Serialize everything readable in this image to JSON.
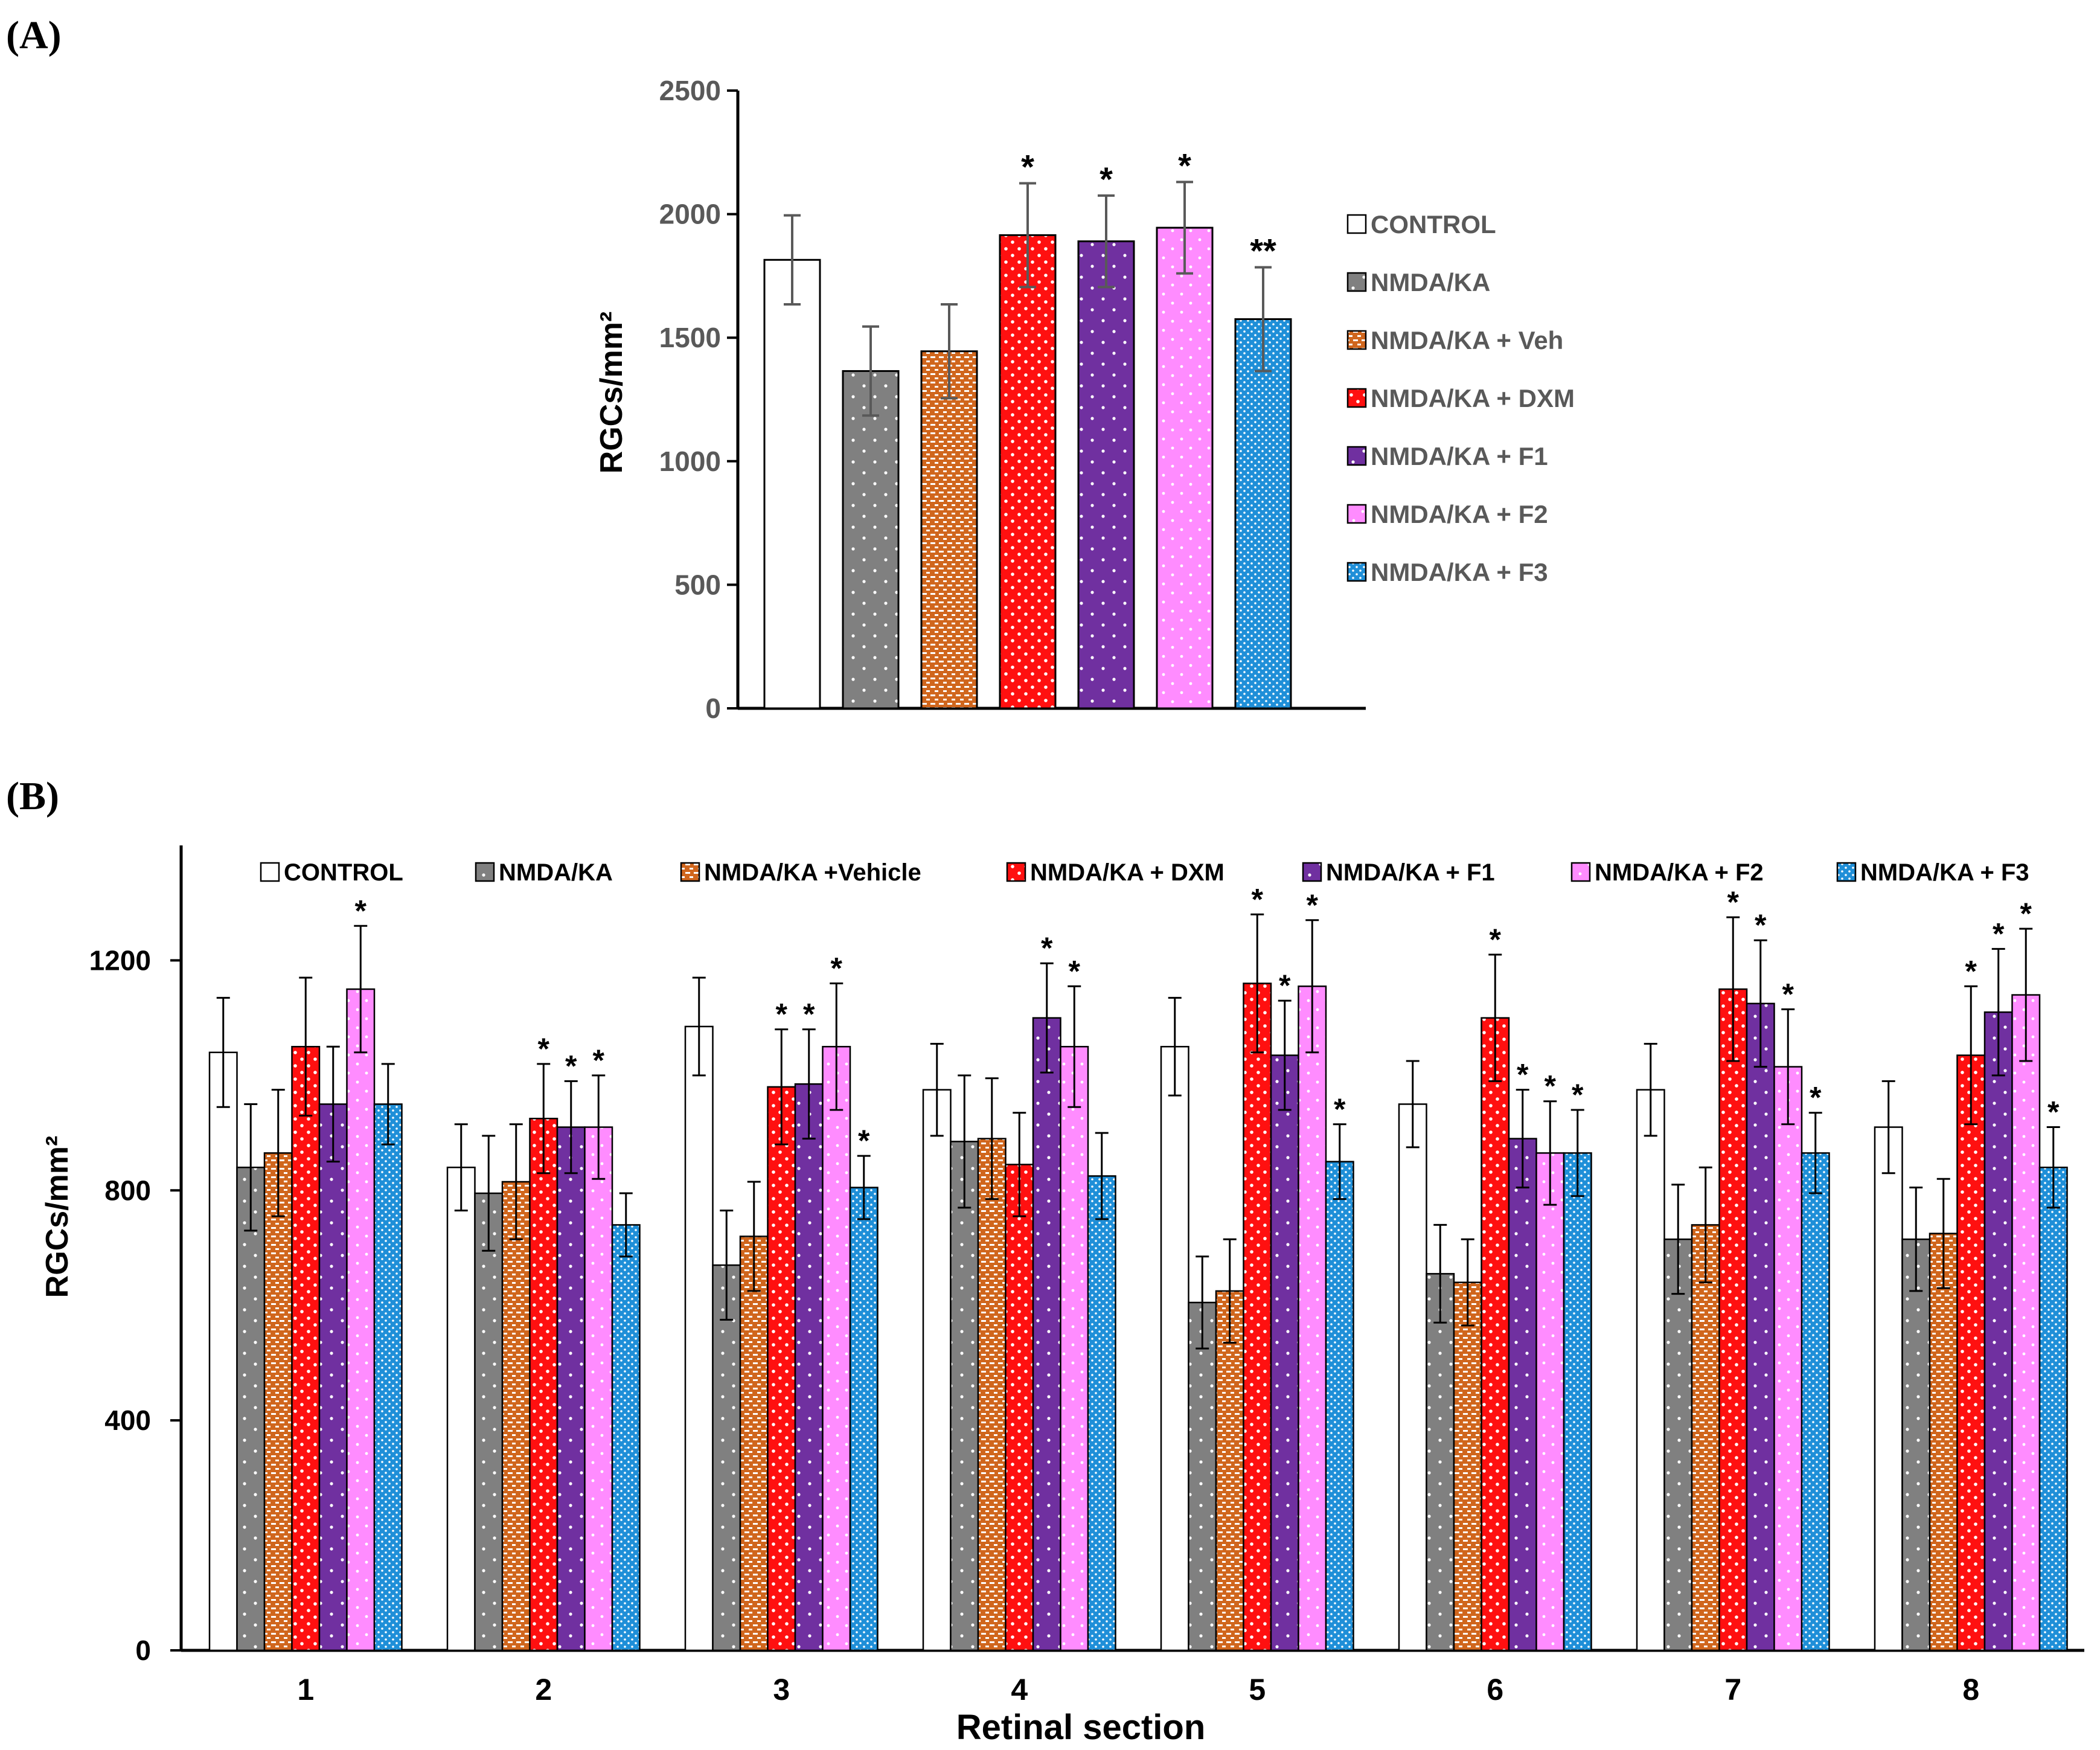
{
  "figure": {
    "panel_labels": [
      "(A)",
      "(B)"
    ]
  },
  "colors": {
    "control": "#ffffff",
    "nmda_ka": "#808080",
    "vehicle": "#d0661d",
    "dxm": "#ff1010",
    "f1": "#7030a0",
    "f2": "#ff8cff",
    "f3": "#1f8fd8",
    "axis": "#000000",
    "tick_text_a": "#595959",
    "error_bar_a": "#595959",
    "error_bar_b": "#000000"
  },
  "chart_data": [
    {
      "type": "bar",
      "panel": "(A)",
      "title": "",
      "xlabel": "",
      "ylabel": "RGCs/mm²",
      "ylim": [
        0,
        2500
      ],
      "yticks": [
        0,
        500,
        1000,
        1500,
        2000,
        2500
      ],
      "grid": false,
      "legend_position": "right",
      "categories": [
        "CONTROL",
        "NMDA/KA",
        "NMDA/KA + Veh",
        "NMDA/KA + DXM",
        "NMDA/KA + F1",
        "NMDA/KA + F2",
        "NMDA/KA + F3"
      ],
      "legend": [
        "CONTROL",
        "NMDA/KA",
        "NMDA/KA + Veh",
        "NMDA/KA + DXM",
        "NMDA/KA + F1",
        "NMDA/KA + F2",
        "NMDA/KA + F3"
      ],
      "series_keys": [
        "control",
        "nmda_ka",
        "vehicle",
        "dxm",
        "f1",
        "f2",
        "f3"
      ],
      "values": [
        1815,
        1365,
        1445,
        1915,
        1890,
        1945,
        1575
      ],
      "errors": [
        180,
        180,
        190,
        210,
        185,
        185,
        210
      ],
      "significance": [
        "",
        "",
        "",
        "*",
        "*",
        "*",
        "**"
      ]
    },
    {
      "type": "bar",
      "panel": "(B)",
      "title": "",
      "xlabel": "Retinal section",
      "ylabel": "RGCs/mm²",
      "ylim": [
        0,
        1400
      ],
      "yticks": [
        0,
        400,
        800,
        1200
      ],
      "grid": false,
      "legend_position": "top",
      "categories": [
        "1",
        "2",
        "3",
        "4",
        "5",
        "6",
        "7",
        "8"
      ],
      "legend": [
        "CONTROL",
        "NMDA/KA",
        "NMDA/KA +Vehicle",
        "NMDA/KA + DXM",
        "NMDA/KA + F1",
        "NMDA/KA + F2",
        "NMDA/KA + F3"
      ],
      "series": [
        {
          "name": "CONTROL",
          "key": "control",
          "values": [
            1040,
            840,
            1085,
            975,
            1050,
            950,
            975,
            910
          ],
          "errors": [
            95,
            75,
            85,
            80,
            85,
            75,
            80,
            80
          ],
          "significance": [
            "",
            "",
            "",
            "",
            "",
            "",
            "",
            ""
          ]
        },
        {
          "name": "NMDA/KA",
          "key": "nmda_ka",
          "values": [
            840,
            795,
            670,
            885,
            605,
            655,
            715,
            715
          ],
          "errors": [
            110,
            100,
            95,
            115,
            80,
            85,
            95,
            90
          ],
          "significance": [
            "",
            "",
            "",
            "",
            "",
            "",
            "",
            ""
          ]
        },
        {
          "name": "NMDA/KA +Vehicle",
          "key": "vehicle",
          "values": [
            865,
            815,
            720,
            890,
            625,
            640,
            740,
            725
          ],
          "errors": [
            110,
            100,
            95,
            105,
            90,
            75,
            100,
            95
          ],
          "significance": [
            "",
            "",
            "",
            "",
            "",
            "",
            "",
            ""
          ]
        },
        {
          "name": "NMDA/KA + DXM",
          "key": "dxm",
          "values": [
            1050,
            925,
            980,
            845,
            1160,
            1100,
            1150,
            1035
          ],
          "errors": [
            120,
            95,
            100,
            90,
            120,
            110,
            125,
            120
          ],
          "significance": [
            "",
            "*",
            "*",
            "",
            "*",
            "*",
            "*",
            "*"
          ]
        },
        {
          "name": "NMDA/KA + F1",
          "key": "f1",
          "values": [
            950,
            910,
            985,
            1100,
            1035,
            890,
            1125,
            1110
          ],
          "errors": [
            100,
            80,
            95,
            95,
            95,
            85,
            110,
            110
          ],
          "significance": [
            "",
            "*",
            "*",
            "*",
            "*",
            "*",
            "*",
            "*"
          ]
        },
        {
          "name": "NMDA/KA + F2",
          "key": "f2",
          "values": [
            1150,
            910,
            1050,
            1050,
            1155,
            865,
            1015,
            1140
          ],
          "errors": [
            110,
            90,
            110,
            105,
            115,
            90,
            100,
            115
          ],
          "significance": [
            "*",
            "*",
            "*",
            "*",
            "*",
            "*",
            "*",
            "*"
          ]
        },
        {
          "name": "NMDA/KA + F3",
          "key": "f3",
          "values": [
            950,
            740,
            805,
            825,
            850,
            865,
            865,
            840
          ],
          "errors": [
            70,
            55,
            55,
            75,
            65,
            75,
            70,
            70
          ],
          "significance": [
            "",
            "",
            "*",
            "",
            "*",
            "*",
            "*",
            "*"
          ]
        }
      ]
    }
  ]
}
